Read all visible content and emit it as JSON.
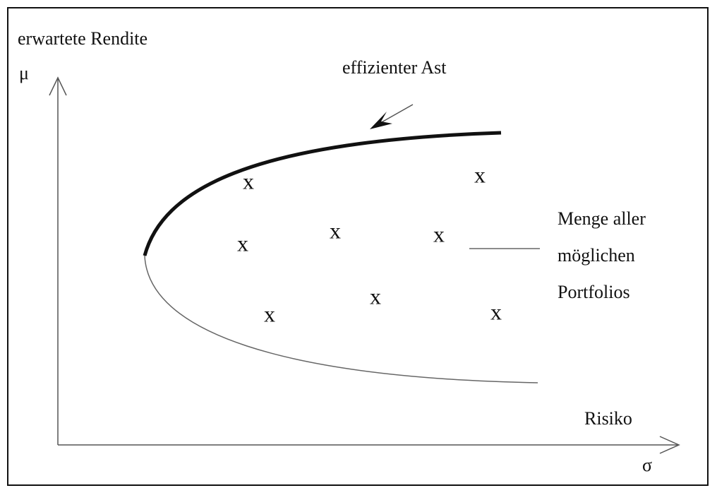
{
  "y_axis_label": "erwartete Rendite",
  "y_axis_symbol": "μ",
  "x_axis_label": "Risiko",
  "x_axis_symbol": "σ",
  "frontier_label": "effizienter Ast",
  "set_label": [
    "Menge aller",
    "möglichen",
    "Portfolios"
  ],
  "portfolios": [
    "x",
    "x",
    "x",
    "x",
    "x",
    "x",
    "x",
    "x"
  ]
}
